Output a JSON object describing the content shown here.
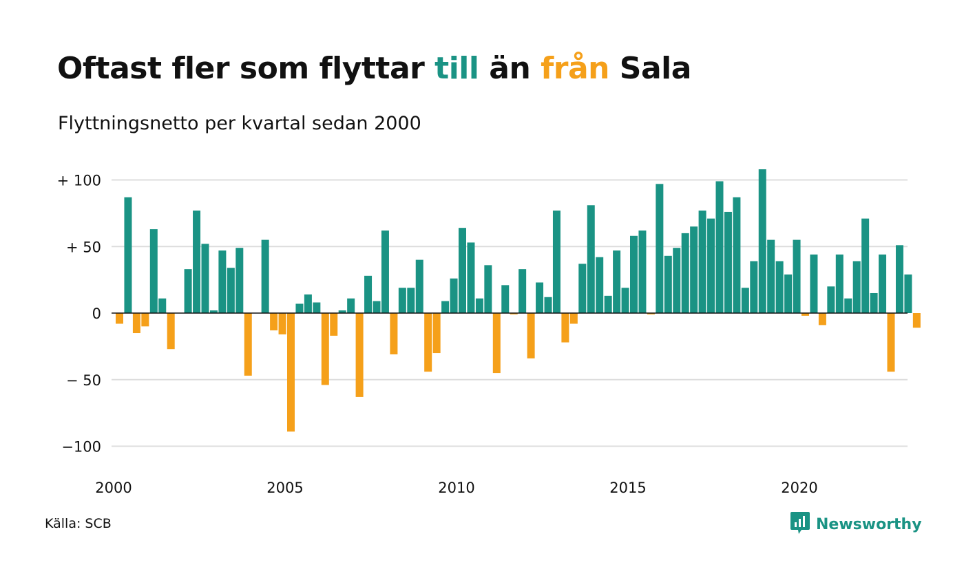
{
  "title": {
    "part1": "Oftast fler som flyttar ",
    "highlight_pos": "till",
    "part2": " än ",
    "highlight_neg": "från",
    "part3": " Sala"
  },
  "subtitle": "Flyttningsnetto per kvartal sedan 2000",
  "source": "Källa: SCB",
  "brand": {
    "name": "Newsworthy",
    "logo_icon": "bar-chart-speech-bubble-icon"
  },
  "colors": {
    "positive": "#1a9384",
    "negative": "#f5a01a",
    "grid": "#dddddd",
    "zero_line": "#111111",
    "text": "#111111"
  },
  "chart_data": {
    "type": "bar",
    "x_start": "2000 Q1",
    "x_unit": "quarter",
    "ylim": [
      -110,
      110
    ],
    "y_ticks": [
      {
        "value": 100,
        "label": "+ 100"
      },
      {
        "value": 50,
        "label": "+  50"
      },
      {
        "value": 0,
        "label": "0"
      },
      {
        "value": -50,
        "label": "− 50"
      },
      {
        "value": -100,
        "label": "−100"
      }
    ],
    "x_ticks": [
      {
        "label": "2000",
        "quarter_index": 0
      },
      {
        "label": "2005",
        "quarter_index": 20
      },
      {
        "label": "2010",
        "quarter_index": 40
      },
      {
        "label": "2015",
        "quarter_index": 60
      },
      {
        "label": "2020",
        "quarter_index": 80
      }
    ],
    "grid": true,
    "values": [
      -8,
      87,
      -15,
      -10,
      63,
      11,
      -27,
      0,
      33,
      77,
      52,
      2,
      47,
      34,
      49,
      -47,
      0,
      55,
      -13,
      -16,
      -89,
      7,
      14,
      8,
      -54,
      -17,
      2,
      11,
      -63,
      28,
      9,
      62,
      -31,
      19,
      19,
      40,
      -44,
      -30,
      9,
      26,
      64,
      53,
      11,
      36,
      -45,
      21,
      -1,
      33,
      -34,
      23,
      12,
      77,
      -22,
      -8,
      37,
      81,
      42,
      13,
      47,
      19,
      58,
      62,
      -1,
      97,
      43,
      49,
      60,
      65,
      77,
      71,
      99,
      76,
      87,
      19,
      39,
      108,
      55,
      39,
      29,
      55,
      -2,
      44,
      -9,
      20,
      44,
      11,
      39,
      71,
      15,
      44,
      -44,
      51,
      29,
      -11
    ]
  }
}
